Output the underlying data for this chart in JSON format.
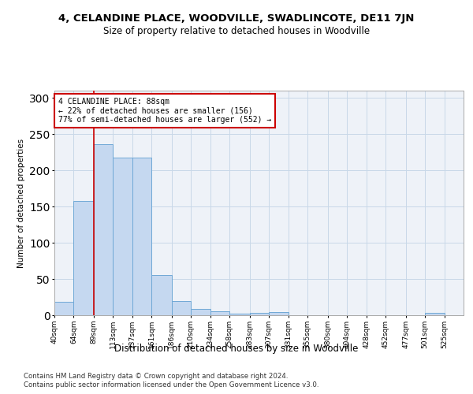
{
  "title": "4, CELANDINE PLACE, WOODVILLE, SWADLINCOTE, DE11 7JN",
  "subtitle": "Size of property relative to detached houses in Woodville",
  "xlabel": "Distribution of detached houses by size in Woodville",
  "ylabel": "Number of detached properties",
  "bar_color": "#c5d8f0",
  "bar_edge_color": "#6fa8d6",
  "grid_color": "#c8d8e8",
  "background_color": "#eef2f8",
  "annotation_box_color": "#cc0000",
  "annotation_text": "4 CELANDINE PLACE: 88sqm\n← 22% of detached houses are smaller (156)\n77% of semi-detached houses are larger (552) →",
  "vline_x": 89,
  "vline_color": "#cc0000",
  "categories": [
    "40sqm",
    "64sqm",
    "89sqm",
    "113sqm",
    "137sqm",
    "161sqm",
    "186sqm",
    "210sqm",
    "234sqm",
    "258sqm",
    "283sqm",
    "307sqm",
    "331sqm",
    "355sqm",
    "380sqm",
    "404sqm",
    "428sqm",
    "452sqm",
    "477sqm",
    "501sqm",
    "525sqm"
  ],
  "bin_edges": [
    40,
    64,
    89,
    113,
    137,
    161,
    186,
    210,
    234,
    258,
    283,
    307,
    331,
    355,
    380,
    404,
    428,
    452,
    477,
    501,
    525,
    549
  ],
  "values": [
    18,
    158,
    236,
    218,
    218,
    56,
    20,
    9,
    5,
    2,
    3,
    4,
    0,
    0,
    0,
    0,
    0,
    0,
    0,
    3,
    0
  ],
  "ylim": [
    0,
    310
  ],
  "yticks": [
    0,
    50,
    100,
    150,
    200,
    250,
    300
  ],
  "footer1": "Contains HM Land Registry data © Crown copyright and database right 2024.",
  "footer2": "Contains public sector information licensed under the Open Government Licence v3.0."
}
